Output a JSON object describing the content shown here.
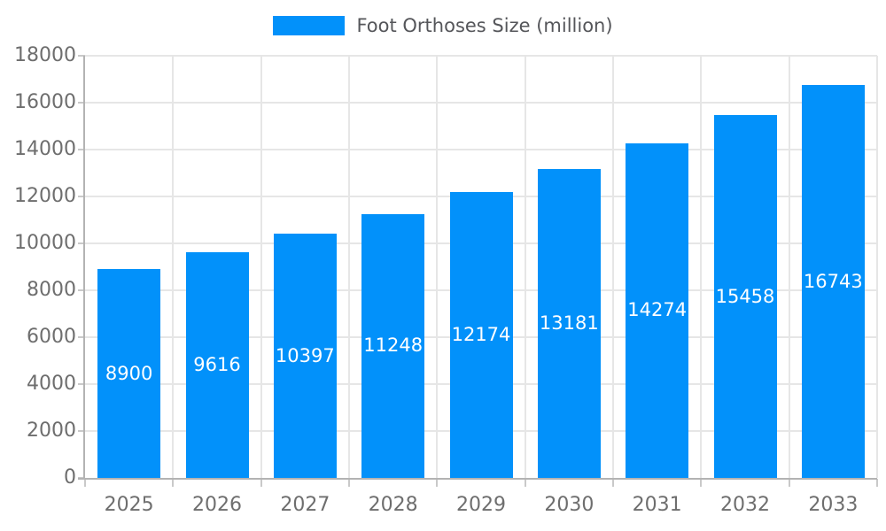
{
  "legend": {
    "label": "Foot Orthoses Size (million)"
  },
  "chart_data": {
    "type": "bar",
    "title": "",
    "categories": [
      "2025",
      "2026",
      "2027",
      "2028",
      "2029",
      "2030",
      "2031",
      "2032",
      "2033"
    ],
    "series": [
      {
        "name": "Foot Orthoses Size (million)",
        "values": [
          8900,
          9616,
          10397,
          11248,
          12174,
          13181,
          14274,
          15458,
          16743
        ]
      }
    ],
    "xlabel": "",
    "ylabel": "",
    "ylim": [
      0,
      18000
    ],
    "yticks": [
      0,
      2000,
      4000,
      6000,
      8000,
      10000,
      12000,
      14000,
      16000,
      18000
    ],
    "grid": true,
    "legend_position": "top-center",
    "value_label_position": "inside-center"
  },
  "colors": {
    "bar": "#0291FA",
    "grid": "#e6e6e6",
    "axis": "#b3b3b3",
    "tick": "#c9c9c9",
    "axis_text": "#6e6e6e",
    "legend_text": "#55565a",
    "value_text": "#ffffff",
    "background": "#ffffff"
  }
}
